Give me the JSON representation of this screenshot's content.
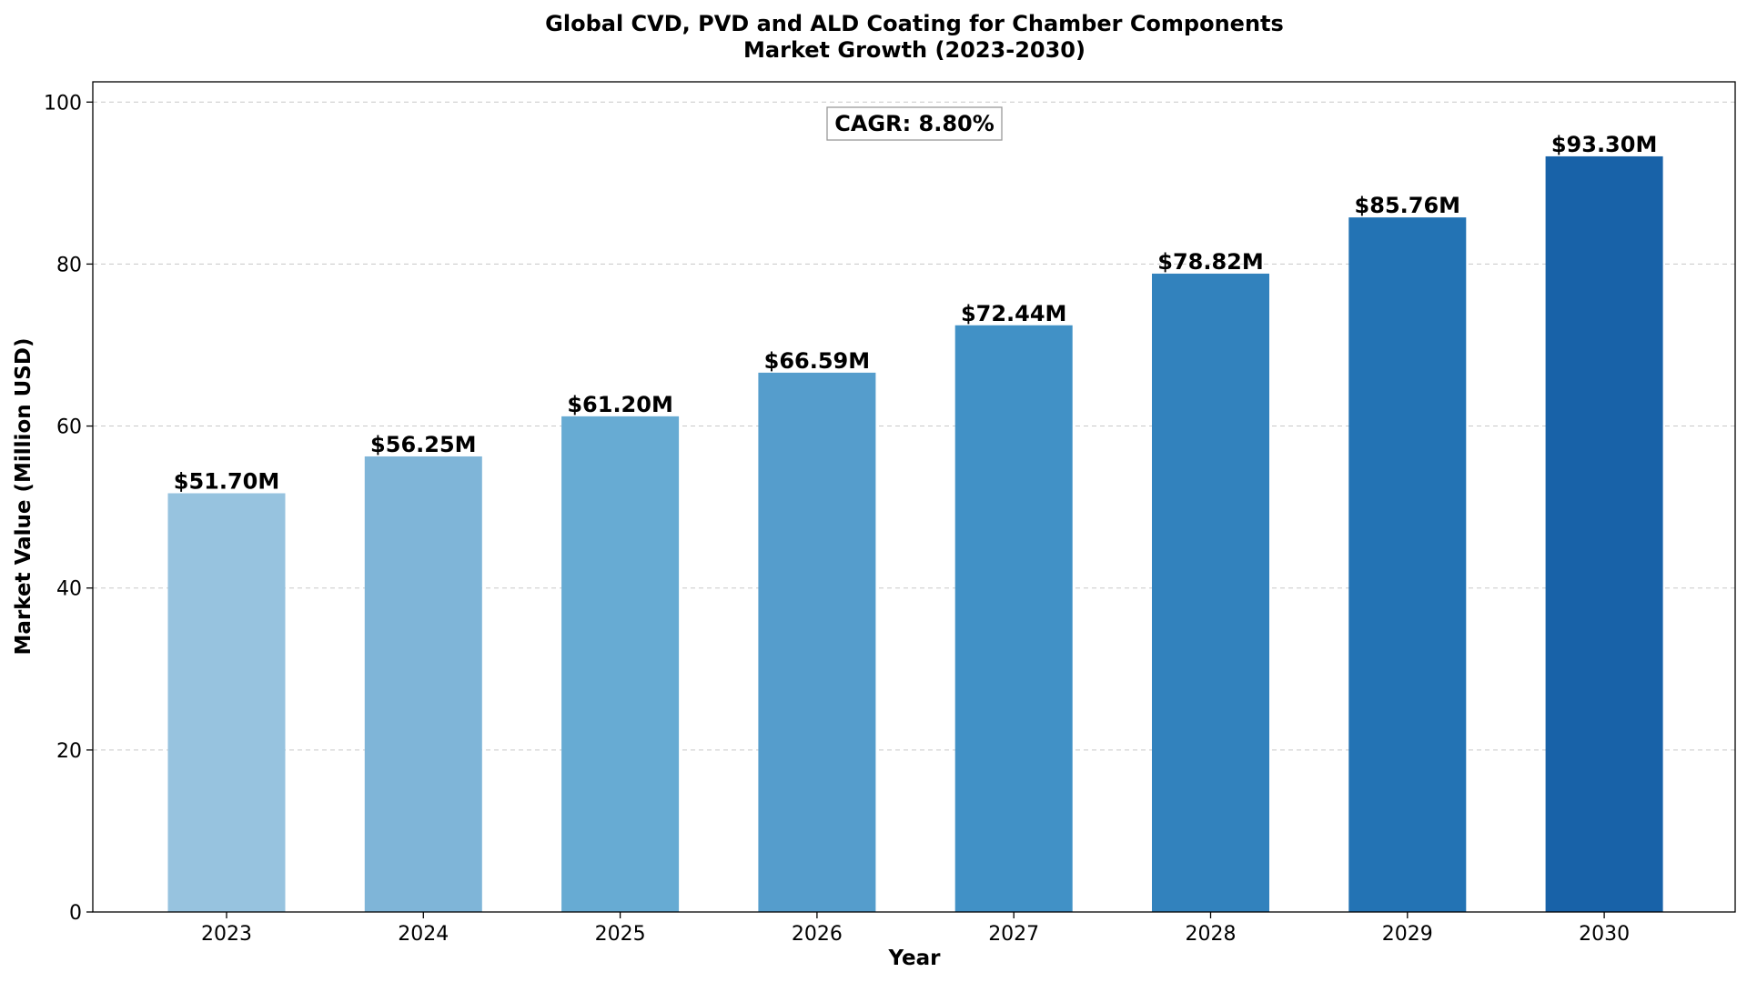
{
  "chart_data": {
    "type": "bar",
    "title": "Global CVD, PVD and ALD Coating for Chamber Components",
    "subtitle": "Market Growth (2023-2030)",
    "xlabel": "Year",
    "ylabel": "Market Value (Million USD)",
    "categories": [
      "2023",
      "2024",
      "2025",
      "2026",
      "2027",
      "2028",
      "2029",
      "2030"
    ],
    "values": [
      51.7,
      56.25,
      61.2,
      66.59,
      72.44,
      78.82,
      85.76,
      93.3
    ],
    "data_labels": [
      "$51.70M",
      "$56.25M",
      "$61.20M",
      "$66.59M",
      "$72.44M",
      "$78.82M",
      "$85.76M",
      "$93.30M"
    ],
    "bar_colors": [
      "#97c3df",
      "#7fb5d8",
      "#67abd3",
      "#559dcc",
      "#4191c6",
      "#3282bd",
      "#2373b4",
      "#1862a8"
    ],
    "ylim": [
      0,
      102.5
    ],
    "yticks": [
      "0",
      "20",
      "40",
      "60",
      "80",
      "100"
    ],
    "grid": "y-dashed",
    "annotation": "CAGR: 8.80%"
  }
}
